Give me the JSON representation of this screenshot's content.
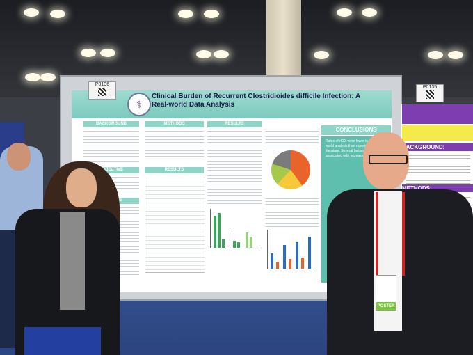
{
  "poster": {
    "board_tag": "P0136",
    "neighbor_tag": "P0135",
    "title": "Clinical Burden of Recurrent Clostridioides difficile Infection: A Real-world Data Analysis",
    "sections": [
      "BACKGROUND",
      "METHODS",
      "RESULTS",
      "RESULTS",
      "CONCLUSIONS",
      "OBJECTIVE"
    ],
    "conclusions_text": "Rates of rCDI were lower in this real-world analysis than reported in the literature. Several factors were associated with increased odds of rCDI."
  },
  "neighbor_poster": {
    "heading_1": "BACKGROUND:",
    "heading_2": "METHODS:"
  },
  "badge": {
    "strip_text": "POSTER"
  },
  "colors": {
    "poster_teal": "#8fd4c6",
    "neighbor_purple": "#7d3fb0",
    "lanyard_red": "#c82525"
  }
}
